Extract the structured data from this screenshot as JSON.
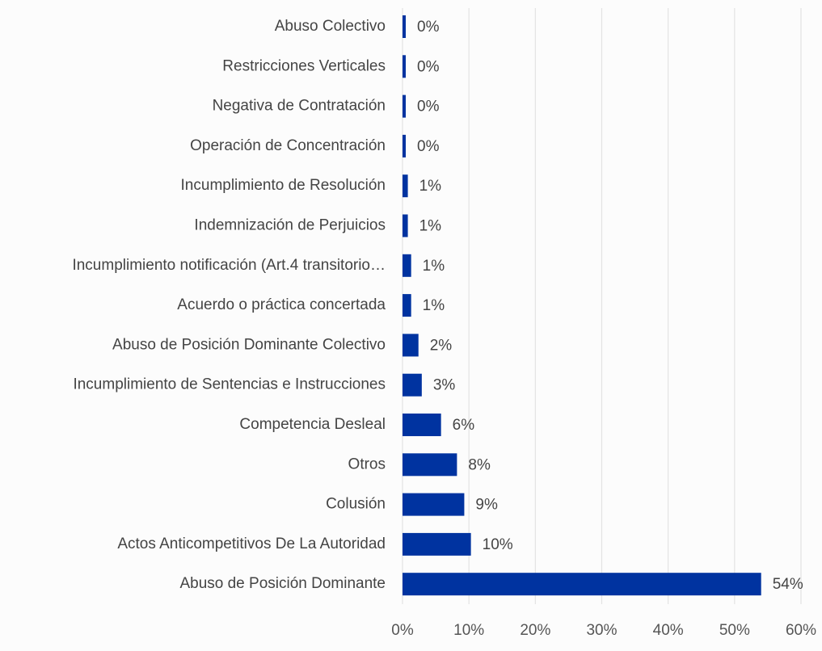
{
  "chart_data": {
    "type": "bar",
    "orientation": "horizontal",
    "title": "",
    "xlabel": "",
    "ylabel": "",
    "categories": [
      "Abuso Colectivo",
      "Restricciones Verticales",
      "Negativa de Contratación",
      "Operación de Concentración",
      "Incumplimiento de Resolución",
      "Indemnización de Perjuicios",
      "Incumplimiento notificación (Art.4 transitorio…",
      "Acuerdo o práctica concertada",
      "Abuso de Posición Dominante Colectivo",
      "Incumplimiento de Sentencias e Instrucciones",
      "Competencia Desleal",
      "Otros",
      "Colusión",
      "Actos Anticompetitivos De La Autoridad",
      "Abuso de Posición Dominante"
    ],
    "values": [
      0.3,
      0.3,
      0.3,
      0.3,
      0.8,
      0.8,
      1.3,
      1.3,
      2.4,
      2.9,
      5.8,
      8.2,
      9.3,
      10.3,
      54.0
    ],
    "value_labels": [
      "0%",
      "0%",
      "0%",
      "0%",
      "1%",
      "1%",
      "1%",
      "1%",
      "2%",
      "3%",
      "6%",
      "8%",
      "9%",
      "10%",
      "54%"
    ],
    "xlim": [
      0,
      60
    ],
    "xticks": [
      0,
      10,
      20,
      30,
      40,
      50,
      60
    ],
    "xtick_labels": [
      "0%",
      "10%",
      "20%",
      "30%",
      "40%",
      "50%",
      "60%"
    ],
    "grid": "vertical",
    "legend": "none",
    "colors": {
      "bar": "#0033a0",
      "grid": "#e3e3e3",
      "text": "#444444",
      "background": "#fcfcfc"
    }
  }
}
